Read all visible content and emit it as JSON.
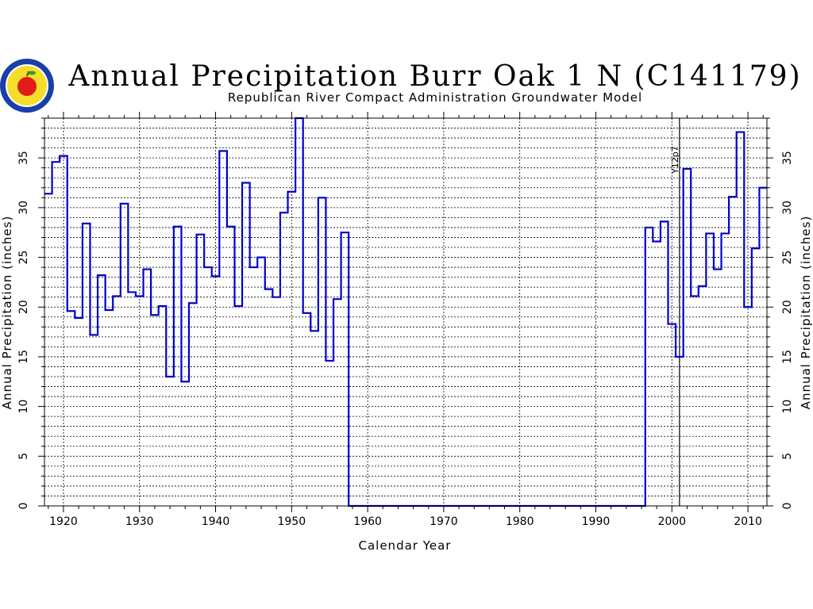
{
  "chart_data": {
    "type": "line",
    "step": true,
    "title": "Annual Precipitation Burr Oak 1 N (C141179)",
    "subtitle": "Republican River Compact Administration Groundwater Model",
    "xlabel": "Calendar Year",
    "ylabel": "Annual Precipitation (inches)",
    "ylabel_right": "Annual Precipitation (inches)",
    "xlim": [
      1917.5,
      2012.5
    ],
    "ylim": [
      0,
      39
    ],
    "xticks": [
      1920,
      1930,
      1940,
      1950,
      1960,
      1970,
      1980,
      1990,
      2000,
      2010
    ],
    "yticks": [
      0,
      5,
      10,
      15,
      20,
      25,
      30,
      35
    ],
    "grid": true,
    "line_color": "#0000cc",
    "annotation": {
      "text": "Y12p7",
      "x": 2001
    },
    "series": [
      {
        "x": [
          1918,
          1919,
          1920,
          1921,
          1922,
          1923,
          1924,
          1925,
          1926,
          1927,
          1928,
          1929,
          1930,
          1931,
          1932,
          1933,
          1934,
          1935,
          1936,
          1937,
          1938,
          1939,
          1940,
          1941,
          1942,
          1943,
          1944,
          1945,
          1946,
          1947,
          1948,
          1949,
          1950,
          1951,
          1952,
          1953,
          1954,
          1955,
          1956,
          1957,
          1958,
          1959,
          1960,
          1961,
          1962,
          1963,
          1964,
          1965,
          1966,
          1967,
          1968,
          1969,
          1970,
          1971,
          1972,
          1973,
          1974,
          1975,
          1976,
          1977,
          1978,
          1979,
          1980,
          1981,
          1982,
          1983,
          1984,
          1985,
          1986,
          1987,
          1988,
          1989,
          1990,
          1991,
          1992,
          1993,
          1994,
          1995,
          1996,
          1997,
          1998,
          1999,
          2000,
          2001,
          2002,
          2003,
          2004,
          2005,
          2006,
          2007,
          2008,
          2009,
          2010,
          2011,
          2012
        ],
        "values": [
          31.4,
          34.6,
          35.2,
          19.6,
          18.9,
          28.4,
          17.2,
          23.2,
          19.7,
          21.1,
          30.4,
          21.5,
          21.1,
          23.8,
          19.2,
          20.1,
          13.0,
          28.1,
          12.5,
          20.4,
          27.3,
          24.0,
          23.1,
          35.7,
          28.1,
          20.1,
          32.5,
          24.0,
          25.0,
          21.8,
          21.0,
          29.5,
          31.6,
          39.0,
          19.4,
          17.6,
          31.0,
          14.6,
          20.8,
          27.5,
          0,
          0,
          0,
          0,
          0,
          0,
          0,
          0,
          0,
          0,
          0,
          0,
          0,
          0,
          0,
          0,
          0,
          0,
          0,
          0,
          0,
          0,
          0,
          0,
          0,
          0,
          0,
          0,
          0,
          0,
          0,
          0,
          0,
          0,
          0,
          0,
          0,
          0,
          0,
          28.0,
          26.6,
          28.6,
          18.3,
          15.0,
          33.9,
          21.1,
          22.1,
          27.4,
          23.8,
          27.4,
          31.1,
          37.6,
          20.0,
          25.9,
          32.0
        ]
      }
    ]
  }
}
